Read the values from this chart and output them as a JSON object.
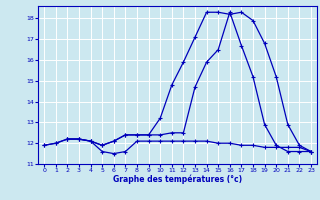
{
  "xlabel": "Graphe des températures (°c)",
  "background_color": "#cce8f0",
  "grid_color": "#ffffff",
  "line_color": "#0000bb",
  "xlim": [
    -0.5,
    23.5
  ],
  "ylim": [
    11,
    18.6
  ],
  "xticks": [
    0,
    1,
    2,
    3,
    4,
    5,
    6,
    7,
    8,
    9,
    10,
    11,
    12,
    13,
    14,
    15,
    16,
    17,
    18,
    19,
    20,
    21,
    22,
    23
  ],
  "yticks": [
    11,
    12,
    13,
    14,
    15,
    16,
    17,
    18
  ],
  "line1_x": [
    0,
    1,
    2,
    3,
    4,
    5,
    6,
    7,
    8,
    9,
    10,
    11,
    12,
    13,
    14,
    15,
    16,
    17,
    18,
    19,
    20,
    21,
    22,
    23
  ],
  "line1_y": [
    11.9,
    12.0,
    12.2,
    12.2,
    12.1,
    11.6,
    11.5,
    11.6,
    12.1,
    12.1,
    12.1,
    12.1,
    12.1,
    12.1,
    12.1,
    12.0,
    12.0,
    11.9,
    11.9,
    11.8,
    11.8,
    11.8,
    11.8,
    11.6
  ],
  "line2_x": [
    0,
    1,
    2,
    3,
    4,
    5,
    6,
    7,
    8,
    9,
    10,
    11,
    12,
    13,
    14,
    15,
    16,
    17,
    18,
    19,
    20,
    21,
    22,
    23
  ],
  "line2_y": [
    11.9,
    12.0,
    12.2,
    12.2,
    12.1,
    11.9,
    12.1,
    12.4,
    12.4,
    12.4,
    13.2,
    14.8,
    15.9,
    17.1,
    18.3,
    18.3,
    18.2,
    18.3,
    17.9,
    16.8,
    15.2,
    12.9,
    11.9,
    11.6
  ],
  "line3_x": [
    2,
    3,
    4,
    5,
    6,
    7,
    8,
    9,
    10,
    11,
    12,
    13,
    14,
    15,
    16,
    17,
    18,
    19,
    20,
    21,
    22,
    23
  ],
  "line3_y": [
    12.2,
    12.2,
    12.1,
    11.9,
    12.1,
    12.4,
    12.4,
    12.4,
    12.4,
    12.5,
    12.5,
    14.7,
    15.9,
    16.5,
    18.3,
    16.7,
    15.2,
    12.9,
    11.9,
    11.6,
    11.6,
    11.6
  ]
}
